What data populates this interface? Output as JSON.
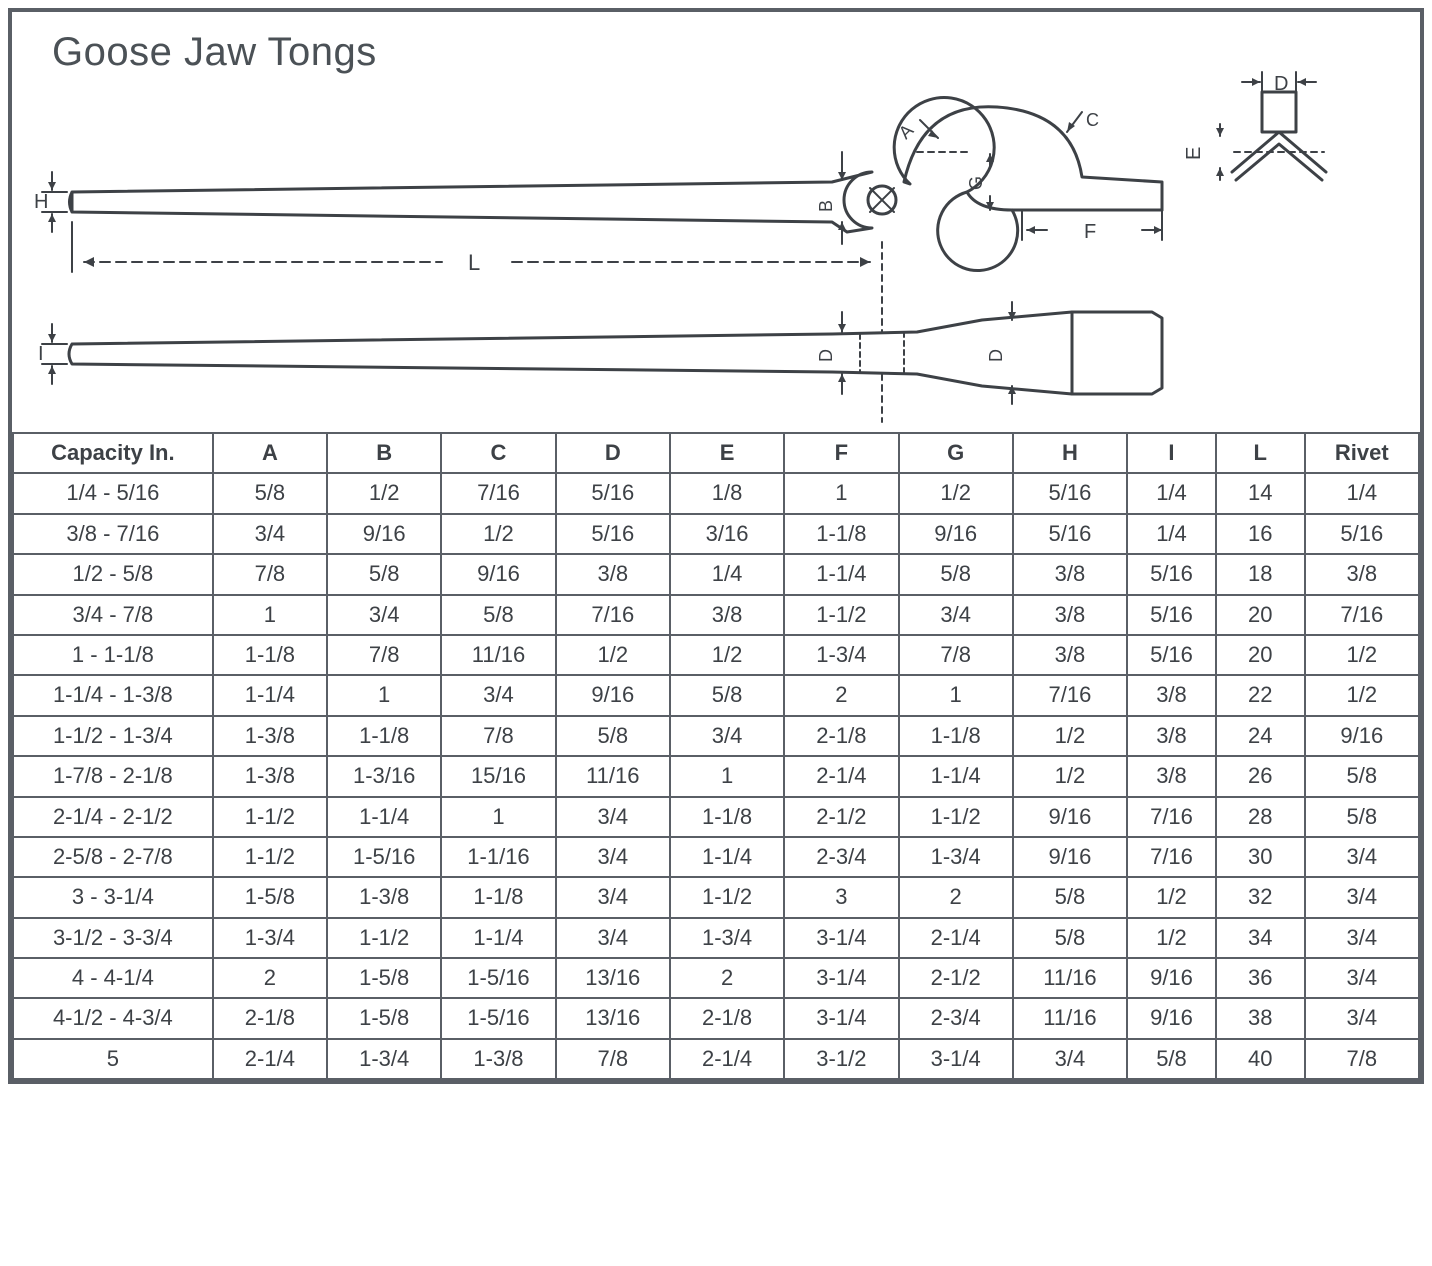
{
  "title": "Goose Jaw Tongs",
  "table": {
    "columns": [
      "Capacity In.",
      "A",
      "B",
      "C",
      "D",
      "E",
      "F",
      "G",
      "H",
      "I",
      "L",
      "Rivet"
    ],
    "column_widths_class": [
      "cap",
      "std",
      "std",
      "std",
      "std",
      "std",
      "std",
      "std",
      "std",
      "narrow",
      "narrow",
      "std"
    ],
    "rows": [
      [
        "1/4 - 5/16",
        "5/8",
        "1/2",
        "7/16",
        "5/16",
        "1/8",
        "1",
        "1/2",
        "5/16",
        "1/4",
        "14",
        "1/4"
      ],
      [
        "3/8 - 7/16",
        "3/4",
        "9/16",
        "1/2",
        "5/16",
        "3/16",
        "1-1/8",
        "9/16",
        "5/16",
        "1/4",
        "16",
        "5/16"
      ],
      [
        "1/2 - 5/8",
        "7/8",
        "5/8",
        "9/16",
        "3/8",
        "1/4",
        "1-1/4",
        "5/8",
        "3/8",
        "5/16",
        "18",
        "3/8"
      ],
      [
        "3/4 - 7/8",
        "1",
        "3/4",
        "5/8",
        "7/16",
        "3/8",
        "1-1/2",
        "3/4",
        "3/8",
        "5/16",
        "20",
        "7/16"
      ],
      [
        "1 - 1-1/8",
        "1-1/8",
        "7/8",
        "11/16",
        "1/2",
        "1/2",
        "1-3/4",
        "7/8",
        "3/8",
        "5/16",
        "20",
        "1/2"
      ],
      [
        "1-1/4 - 1-3/8",
        "1-1/4",
        "1",
        "3/4",
        "9/16",
        "5/8",
        "2",
        "1",
        "7/16",
        "3/8",
        "22",
        "1/2"
      ],
      [
        "1-1/2 - 1-3/4",
        "1-3/8",
        "1-1/8",
        "7/8",
        "5/8",
        "3/4",
        "2-1/8",
        "1-1/8",
        "1/2",
        "3/8",
        "24",
        "9/16"
      ],
      [
        "1-7/8 - 2-1/8",
        "1-3/8",
        "1-3/16",
        "15/16",
        "11/16",
        "1",
        "2-1/4",
        "1-1/4",
        "1/2",
        "3/8",
        "26",
        "5/8"
      ],
      [
        "2-1/4 - 2-1/2",
        "1-1/2",
        "1-1/4",
        "1",
        "3/4",
        "1-1/8",
        "2-1/2",
        "1-1/2",
        "9/16",
        "7/16",
        "28",
        "5/8"
      ],
      [
        "2-5/8 - 2-7/8",
        "1-1/2",
        "1-5/16",
        "1-1/16",
        "3/4",
        "1-1/4",
        "2-3/4",
        "1-3/4",
        "9/16",
        "7/16",
        "30",
        "3/4"
      ],
      [
        "3 - 3-1/4",
        "1-5/8",
        "1-3/8",
        "1-1/8",
        "3/4",
        "1-1/2",
        "3",
        "2",
        "5/8",
        "1/2",
        "32",
        "3/4"
      ],
      [
        "3-1/2 - 3-3/4",
        "1-3/4",
        "1-1/2",
        "1-1/4",
        "3/4",
        "1-3/4",
        "3-1/4",
        "2-1/4",
        "5/8",
        "1/2",
        "34",
        "3/4"
      ],
      [
        "4 - 4-1/4",
        "2",
        "1-5/8",
        "1-5/16",
        "13/16",
        "2",
        "3-1/4",
        "2-1/2",
        "11/16",
        "9/16",
        "36",
        "3/4"
      ],
      [
        "4-1/2 - 4-3/4",
        "2-1/8",
        "1-5/8",
        "1-5/16",
        "13/16",
        "2-1/8",
        "3-1/4",
        "2-3/4",
        "11/16",
        "9/16",
        "38",
        "3/4"
      ],
      [
        "5",
        "2-1/4",
        "1-3/4",
        "1-3/8",
        "7/8",
        "2-1/4",
        "3-1/2",
        "3-1/4",
        "3/4",
        "5/8",
        "40",
        "7/8"
      ]
    ]
  },
  "diagram": {
    "stroke": "#3d4146",
    "stroke_width": 3,
    "thin_stroke_width": 2,
    "label_fontsize": 20,
    "labels": [
      "A",
      "B",
      "C",
      "D",
      "E",
      "F",
      "G",
      "H",
      "I",
      "L"
    ],
    "dimension_L": "L",
    "background": "#ffffff"
  },
  "style": {
    "border_color": "#5a5f66",
    "text_color": "#3d4146",
    "header_fontsize": 22,
    "cell_fontsize": 22,
    "title_fontsize": 40
  }
}
